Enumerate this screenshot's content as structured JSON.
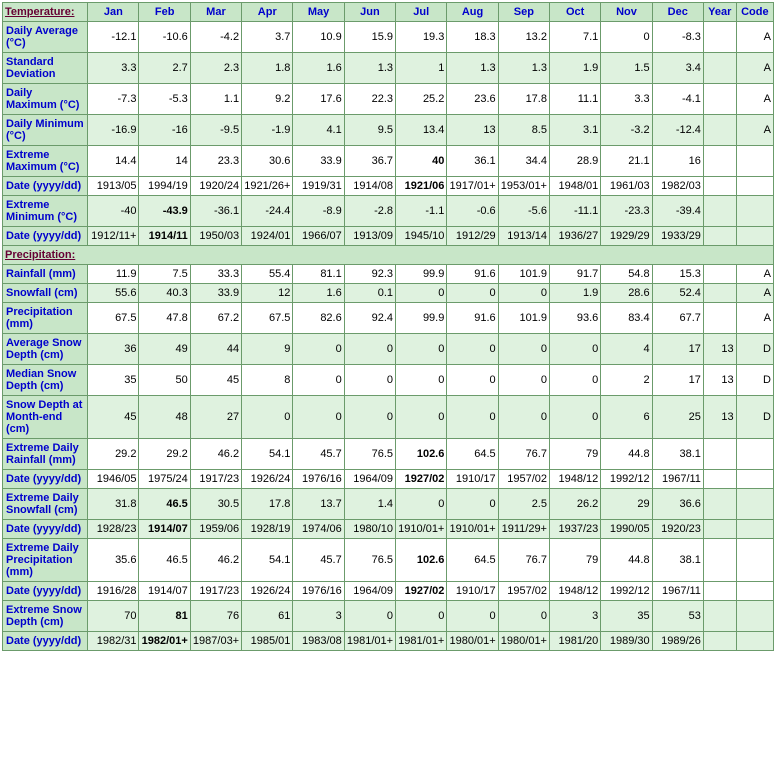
{
  "headers": {
    "temperature": "Temperature:",
    "precipitation": "Precipitation:",
    "months": [
      "Jan",
      "Feb",
      "Mar",
      "Apr",
      "May",
      "Jun",
      "Jul",
      "Aug",
      "Sep",
      "Oct",
      "Nov",
      "Dec"
    ],
    "year": "Year",
    "code": "Code"
  },
  "temp_rows": [
    {
      "label": "Daily Average (°C)",
      "cls": "white",
      "bold_idx": null,
      "v": [
        "-12.1",
        "-10.6",
        "-4.2",
        "3.7",
        "10.9",
        "15.9",
        "19.3",
        "18.3",
        "13.2",
        "7.1",
        "0",
        "-8.3",
        "",
        "A"
      ]
    },
    {
      "label": "Standard Deviation",
      "cls": "green",
      "bold_idx": null,
      "v": [
        "3.3",
        "2.7",
        "2.3",
        "1.8",
        "1.6",
        "1.3",
        "1",
        "1.3",
        "1.3",
        "1.9",
        "1.5",
        "3.4",
        "",
        "A"
      ]
    },
    {
      "label": "Daily Maximum (°C)",
      "cls": "white",
      "bold_idx": null,
      "v": [
        "-7.3",
        "-5.3",
        "1.1",
        "9.2",
        "17.6",
        "22.3",
        "25.2",
        "23.6",
        "17.8",
        "11.1",
        "3.3",
        "-4.1",
        "",
        "A"
      ]
    },
    {
      "label": "Daily Minimum (°C)",
      "cls": "green",
      "bold_idx": null,
      "v": [
        "-16.9",
        "-16",
        "-9.5",
        "-1.9",
        "4.1",
        "9.5",
        "13.4",
        "13",
        "8.5",
        "3.1",
        "-3.2",
        "-12.4",
        "",
        "A"
      ]
    },
    {
      "label": "Extreme Maximum (°C)",
      "cls": "white",
      "bold_idx": 6,
      "v": [
        "14.4",
        "14",
        "23.3",
        "30.6",
        "33.9",
        "36.7",
        "40",
        "36.1",
        "34.4",
        "28.9",
        "21.1",
        "16",
        "",
        ""
      ]
    },
    {
      "label": "Date (yyyy/dd)",
      "cls": "white",
      "bold_idx": 6,
      "v": [
        "1913/05",
        "1994/19",
        "1920/24",
        "1921/26+",
        "1919/31",
        "1914/08",
        "1921/06",
        "1917/01+",
        "1953/01+",
        "1948/01",
        "1961/03",
        "1982/03",
        "",
        ""
      ]
    },
    {
      "label": "Extreme Minimum (°C)",
      "cls": "green",
      "bold_idx": 1,
      "v": [
        "-40",
        "-43.9",
        "-36.1",
        "-24.4",
        "-8.9",
        "-2.8",
        "-1.1",
        "-0.6",
        "-5.6",
        "-11.1",
        "-23.3",
        "-39.4",
        "",
        ""
      ]
    },
    {
      "label": "Date (yyyy/dd)",
      "cls": "green",
      "bold_idx": 1,
      "v": [
        "1912/11+",
        "1914/11",
        "1950/03",
        "1924/01",
        "1966/07",
        "1913/09",
        "1945/10",
        "1912/29",
        "1913/14",
        "1936/27",
        "1929/29",
        "1933/29",
        "",
        ""
      ]
    }
  ],
  "precip_rows": [
    {
      "label": "Rainfall (mm)",
      "cls": "white",
      "bold_idx": null,
      "v": [
        "11.9",
        "7.5",
        "33.3",
        "55.4",
        "81.1",
        "92.3",
        "99.9",
        "91.6",
        "101.9",
        "91.7",
        "54.8",
        "15.3",
        "",
        "A"
      ]
    },
    {
      "label": "Snowfall (cm)",
      "cls": "green",
      "bold_idx": null,
      "v": [
        "55.6",
        "40.3",
        "33.9",
        "12",
        "1.6",
        "0.1",
        "0",
        "0",
        "0",
        "1.9",
        "28.6",
        "52.4",
        "",
        "A"
      ]
    },
    {
      "label": "Precipitation (mm)",
      "cls": "white",
      "bold_idx": null,
      "v": [
        "67.5",
        "47.8",
        "67.2",
        "67.5",
        "82.6",
        "92.4",
        "99.9",
        "91.6",
        "101.9",
        "93.6",
        "83.4",
        "67.7",
        "",
        "A"
      ]
    },
    {
      "label": "Average Snow Depth (cm)",
      "cls": "green",
      "bold_idx": null,
      "v": [
        "36",
        "49",
        "44",
        "9",
        "0",
        "0",
        "0",
        "0",
        "0",
        "0",
        "4",
        "17",
        "13",
        "D"
      ]
    },
    {
      "label": "Median Snow Depth (cm)",
      "cls": "white",
      "bold_idx": null,
      "v": [
        "35",
        "50",
        "45",
        "8",
        "0",
        "0",
        "0",
        "0",
        "0",
        "0",
        "2",
        "17",
        "13",
        "D"
      ]
    },
    {
      "label": "Snow Depth at Month-end (cm)",
      "cls": "green",
      "bold_idx": null,
      "v": [
        "45",
        "48",
        "27",
        "0",
        "0",
        "0",
        "0",
        "0",
        "0",
        "0",
        "6",
        "25",
        "13",
        "D"
      ]
    },
    {
      "label": "Extreme Daily Rainfall (mm)",
      "cls": "white",
      "bold_idx": 6,
      "v": [
        "29.2",
        "29.2",
        "46.2",
        "54.1",
        "45.7",
        "76.5",
        "102.6",
        "64.5",
        "76.7",
        "79",
        "44.8",
        "38.1",
        "",
        ""
      ]
    },
    {
      "label": "Date (yyyy/dd)",
      "cls": "white",
      "bold_idx": 6,
      "v": [
        "1946/05",
        "1975/24",
        "1917/23",
        "1926/24",
        "1976/16",
        "1964/09",
        "1927/02",
        "1910/17",
        "1957/02",
        "1948/12",
        "1992/12",
        "1967/11",
        "",
        ""
      ]
    },
    {
      "label": "Extreme Daily Snowfall (cm)",
      "cls": "green",
      "bold_idx": 1,
      "v": [
        "31.8",
        "46.5",
        "30.5",
        "17.8",
        "13.7",
        "1.4",
        "0",
        "0",
        "2.5",
        "26.2",
        "29",
        "36.6",
        "",
        ""
      ]
    },
    {
      "label": "Date (yyyy/dd)",
      "cls": "green",
      "bold_idx": 1,
      "v": [
        "1928/23",
        "1914/07",
        "1959/06",
        "1928/19",
        "1974/06",
        "1980/10",
        "1910/01+",
        "1910/01+",
        "1911/29+",
        "1937/23",
        "1990/05",
        "1920/23",
        "",
        ""
      ]
    },
    {
      "label": "Extreme Daily Precipitation (mm)",
      "cls": "white",
      "bold_idx": 6,
      "v": [
        "35.6",
        "46.5",
        "46.2",
        "54.1",
        "45.7",
        "76.5",
        "102.6",
        "64.5",
        "76.7",
        "79",
        "44.8",
        "38.1",
        "",
        ""
      ]
    },
    {
      "label": "Date (yyyy/dd)",
      "cls": "white",
      "bold_idx": 6,
      "v": [
        "1916/28",
        "1914/07",
        "1917/23",
        "1926/24",
        "1976/16",
        "1964/09",
        "1927/02",
        "1910/17",
        "1957/02",
        "1948/12",
        "1992/12",
        "1967/11",
        "",
        ""
      ]
    },
    {
      "label": "Extreme Snow Depth (cm)",
      "cls": "green",
      "bold_idx": 1,
      "v": [
        "70",
        "81",
        "76",
        "61",
        "3",
        "0",
        "0",
        "0",
        "0",
        "3",
        "35",
        "53",
        "",
        ""
      ]
    },
    {
      "label": "Date (yyyy/dd)",
      "cls": "green",
      "bold_idx": 1,
      "v": [
        "1982/31",
        "1982/01+",
        "1987/03+",
        "1985/01",
        "1983/08",
        "1981/01+",
        "1981/01+",
        "1980/01+",
        "1980/01+",
        "1981/20",
        "1989/30",
        "1989/26",
        "",
        ""
      ]
    }
  ]
}
